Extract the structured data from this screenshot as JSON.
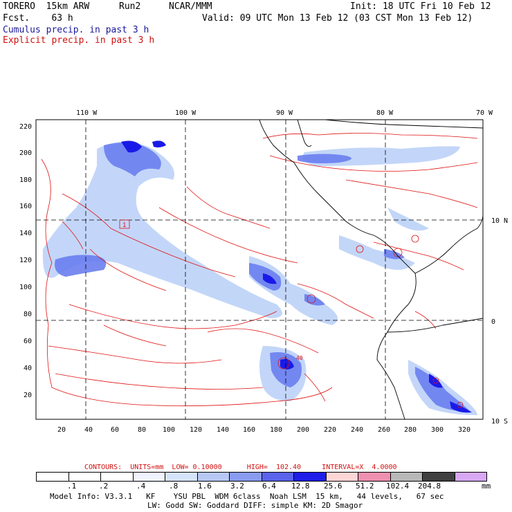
{
  "header": {
    "model": "TORERO  15km ARW",
    "run": "Run2",
    "org": "NCAR/MMM",
    "init": "Init: 18 UTC Fri 10 Feb 12",
    "fcst": "Fcst.    63 h",
    "valid": "Valid: 09 UTC Mon 13 Feb 12 (03 CST Mon 13 Feb 12)",
    "field1": "Cumulus precip. in past 3 h",
    "field2": "Explicit precip. in past 3 h"
  },
  "map": {
    "lon_labels": [
      "110 W",
      "100 W",
      "90 W",
      "80 W",
      "70 W"
    ],
    "lat_labels": [
      "10 N",
      "0",
      "10 S"
    ],
    "y_ticks": [
      "220",
      "200",
      "180",
      "160",
      "140",
      "120",
      "100",
      "80",
      "60",
      "40",
      "20"
    ],
    "x_ticks": [
      "20",
      "40",
      "60",
      "80",
      "100",
      "120",
      "140",
      "160",
      "180",
      "200",
      "220",
      "240",
      "260",
      "280",
      "300",
      "320"
    ],
    "box_label": "1",
    "box_label2": "40",
    "colors": {
      "contour": "#e01010",
      "cumulus_light": "#bcd2f8",
      "cumulus_mid": "#6a7ef0",
      "cumulus_dark": "#1a1ae8",
      "land": "#000000"
    }
  },
  "contours_info": {
    "text": "CONTOURS:  UNITS=mm  LOW= 0.10000      HIGH=  102.40     INTERVAL=X  4.0000"
  },
  "colorbar": {
    "labels": [
      ".1",
      ".2",
      ".4",
      ".8",
      "1.6",
      "3.2",
      "6.4",
      "12.8",
      "25.6",
      "51.2",
      "102.4",
      "204.8"
    ],
    "unit": "mm",
    "colors": [
      "#ffffff",
      "#ffffff",
      "#ffffff",
      "#f0f4ff",
      "#d6e4fb",
      "#b8c8f5",
      "#8a9cf0",
      "#5a64ec",
      "#1e1ee8",
      "#ffd6d6",
      "#f090b0",
      "#b8b8b8",
      "#404040",
      "#d8a8f4"
    ]
  },
  "footer": {
    "line1": "Model Info: V3.3.1   KF    YSU PBL  WDM 6class  Noah LSM  15 km,   44 levels,   67 sec",
    "line2": "LW: Godd SW: Goddard DIFF: simple KM: 2D Smagor"
  }
}
